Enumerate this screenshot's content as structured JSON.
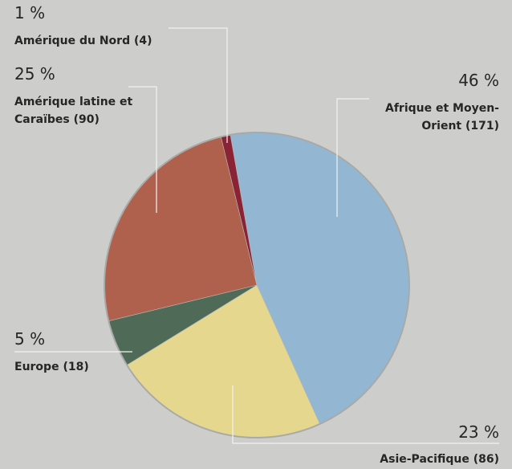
{
  "chart_data": {
    "type": "pie",
    "categories": [
      "Afrique et Moyen-Orient (171)",
      "Asie-Pacifique (86)",
      "Europe (18)",
      "Amérique latine et Caraïbes (90)",
      "Amérique du Nord (4)"
    ],
    "values": [
      46,
      23,
      5,
      25,
      1
    ],
    "value_labels": [
      "46 %",
      "23 %",
      "5 %",
      "25 %",
      "1 %"
    ],
    "colors": [
      "#93b6d2",
      "#e5d88e",
      "#4f6b58",
      "#b0614d",
      "#8a2335"
    ]
  }
}
